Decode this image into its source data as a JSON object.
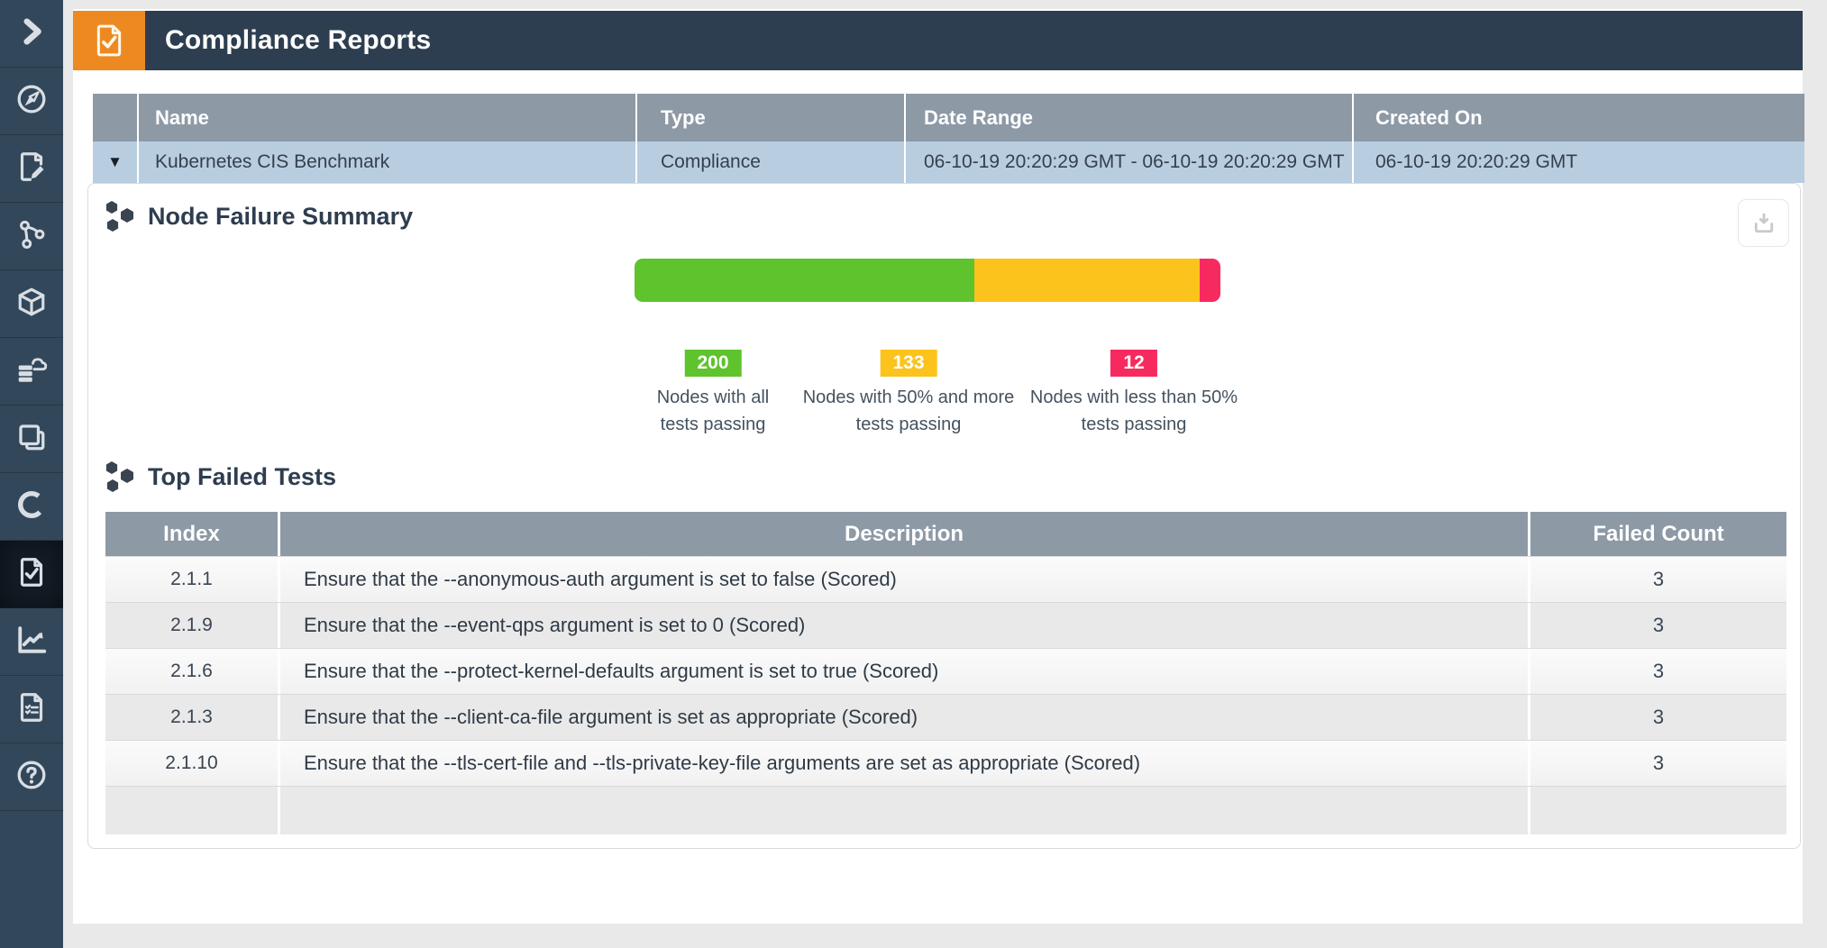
{
  "header": {
    "title": "Compliance Reports"
  },
  "sidebar": {
    "active_item": "compliance-document-check",
    "icons": [
      "chevron-right",
      "compass",
      "document-edit",
      "branch-nodes",
      "cube",
      "cloud-database",
      "layers",
      "ring",
      "document-check",
      "line-chart",
      "checklist-document",
      "help-circle"
    ]
  },
  "reports_table": {
    "columns": [
      "Name",
      "Type",
      "Date Range",
      "Created On"
    ],
    "rows": [
      {
        "name": "Kubernetes CIS Benchmark",
        "type": "Compliance",
        "date_range": "06-10-19 20:20:29 GMT - 06-10-19 20:20:29 GMT",
        "created_on": "06-10-19 20:20:29 GMT",
        "expander": "▼"
      }
    ]
  },
  "sections": {
    "node_failure_summary": {
      "title": "Node Failure Summary"
    },
    "top_failed_tests": {
      "title": "Top Failed Tests"
    }
  },
  "chart_data": {
    "type": "bar",
    "stacked": true,
    "title": "Node Failure Summary",
    "categories": [
      "Nodes with all tests passing",
      "Nodes with 50% and more tests passing",
      "Nodes with less than 50% tests passing"
    ],
    "values": [
      200,
      133,
      12
    ],
    "colors": [
      "#5EC32D",
      "#FBC31B",
      "#F72A60"
    ],
    "legend": [
      {
        "value": "200",
        "line1": "Nodes with all",
        "line2": "tests passing"
      },
      {
        "value": "133",
        "line1": "Nodes with 50% and more",
        "line2": "tests passing"
      },
      {
        "value": "12",
        "line1": "Nodes with less than 50%",
        "line2": "tests passing"
      }
    ]
  },
  "failed_tests": {
    "columns": [
      "Index",
      "Description",
      "Failed Count"
    ],
    "rows": [
      {
        "index": "2.1.1",
        "description": "Ensure that the --anonymous-auth argument is set to false (Scored)",
        "count": "3"
      },
      {
        "index": "2.1.9",
        "description": "Ensure that the --event-qps argument is set to 0 (Scored)",
        "count": "3"
      },
      {
        "index": "2.1.6",
        "description": "Ensure that the --protect-kernel-defaults argument is set to true (Scored)",
        "count": "3"
      },
      {
        "index": "2.1.3",
        "description": "Ensure that the --client-ca-file argument is set as appropriate (Scored)",
        "count": "3"
      },
      {
        "index": "2.1.10",
        "description": "Ensure that the --tls-cert-file and --tls-private-key-file arguments are set as appropriate (Scored)",
        "count": "3"
      },
      {
        "index": "",
        "description": "",
        "count": ""
      }
    ]
  }
}
